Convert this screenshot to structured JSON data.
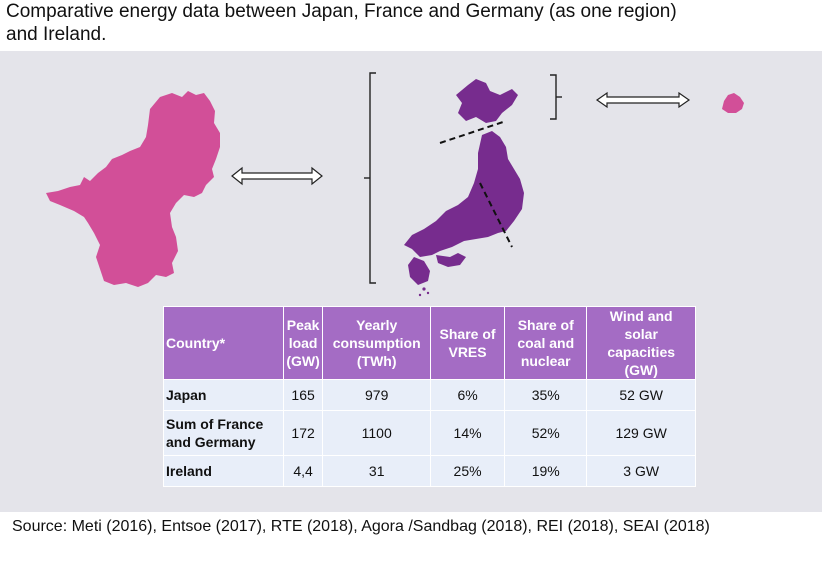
{
  "title_line1": "Comparative energy data between Japan, France and Germany (as one region)",
  "title_line2": "and Ireland.",
  "colors": {
    "france_germany_fill": "#d24f98",
    "japan_fill": "#772c8e",
    "ireland_fill": "#d24f98",
    "table_header": "#a46cc4",
    "table_cell": "#e8eef9",
    "panel_background": "#e4e4ea"
  },
  "table": {
    "headers": [
      {
        "key": "country",
        "lines": [
          "Country*"
        ]
      },
      {
        "key": "peak",
        "lines": [
          "Peak",
          "load",
          "(GW)"
        ]
      },
      {
        "key": "yearly",
        "lines": [
          "Yearly",
          "consumption",
          "(TWh)"
        ]
      },
      {
        "key": "vres",
        "lines": [
          "Share of",
          "VRES"
        ]
      },
      {
        "key": "coal",
        "lines": [
          "Share of",
          "coal and",
          "nuclear"
        ]
      },
      {
        "key": "wind",
        "lines": [
          "Wind and",
          "solar",
          "capacities",
          "(GW)"
        ]
      }
    ],
    "rows": [
      {
        "name_lines": [
          "Japan"
        ],
        "peak": "165",
        "yearly": "979",
        "vres": "6%",
        "coal": "35%",
        "wind": "52 GW"
      },
      {
        "name_lines": [
          "Sum of France",
          "and Germany"
        ],
        "peak": "172",
        "yearly": "1100",
        "vres": "14%",
        "coal": "52%",
        "wind": "129 GW"
      },
      {
        "name_lines": [
          "Ireland"
        ],
        "peak": "4,4",
        "yearly": "31",
        "vres": "25%",
        "coal": "19%",
        "wind": "3 GW"
      }
    ]
  },
  "source_text": "Source: Meti (2016), Entsoe (2017), RTE (2018), Agora /Sandbag (2018), REI (2018), SEAI (2018)"
}
